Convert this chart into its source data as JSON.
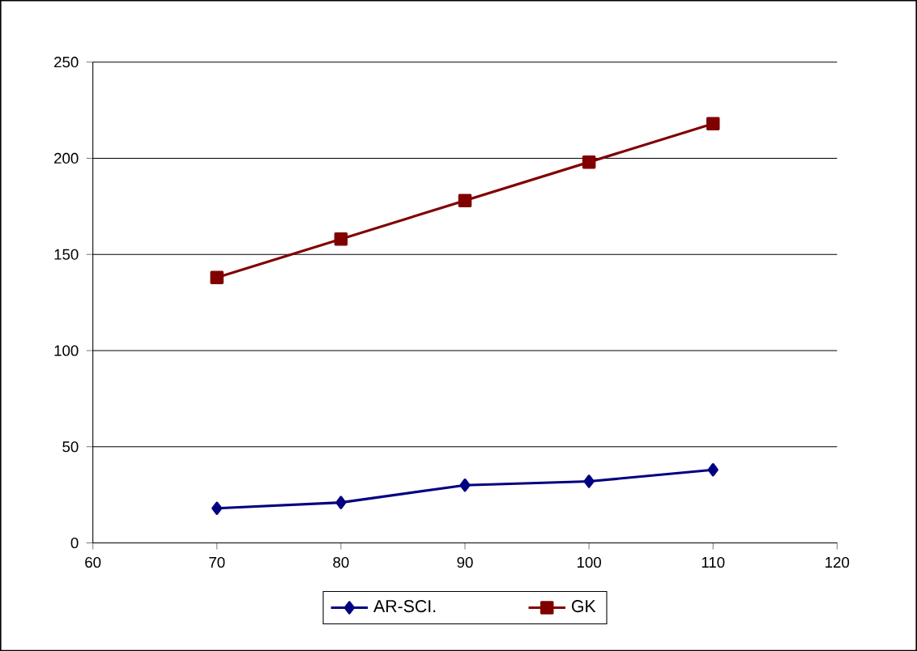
{
  "chart_data": {
    "type": "line",
    "x": [
      70,
      80,
      90,
      100,
      110
    ],
    "series": [
      {
        "name": "AR-SCI.",
        "color": "#000080",
        "marker": "diamond",
        "values": [
          18,
          21,
          30,
          32,
          38
        ]
      },
      {
        "name": "GK",
        "color": "#800000",
        "marker": "square",
        "values": [
          138,
          158,
          178,
          198,
          218
        ]
      }
    ],
    "xlim": [
      60,
      120
    ],
    "xticks": [
      60,
      70,
      80,
      90,
      100,
      110,
      120
    ],
    "ylim": [
      0,
      250
    ],
    "yticks": [
      0,
      50,
      100,
      150,
      200,
      250
    ],
    "grid": "y",
    "legend": "bottom"
  }
}
